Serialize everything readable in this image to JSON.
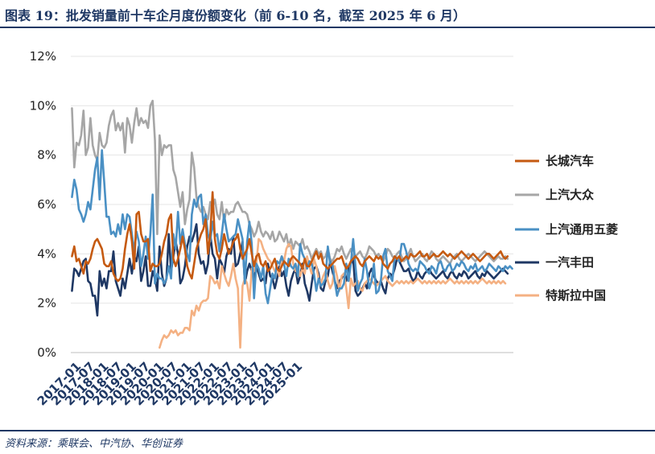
{
  "header": {
    "title": "图表 19：批发销量前十车企月度份额变化（前 6-10 名，截至 2025 年 6 月）"
  },
  "footer": {
    "source": "资料来源：乘联会、中汽协、华创证券"
  },
  "chart_data": {
    "type": "line",
    "title": "批发销量前十车企月度份额变化（前 6-10 名，截至 2025 年 6 月）",
    "xlabel": "",
    "ylabel": "",
    "ylim": [
      0,
      12
    ],
    "y_ticks": [
      "0%",
      "2%",
      "4%",
      "6%",
      "8%",
      "10%",
      "12%"
    ],
    "y_tick_values": [
      0,
      2,
      4,
      6,
      8,
      10,
      12
    ],
    "x_start": "2017-01",
    "x_end": "2025-06",
    "x_ticks": [
      "2017-01",
      "2017-07",
      "2018-01",
      "2018-07",
      "2019-01",
      "2019-07",
      "2020-01",
      "2020-07",
      "2021-01",
      "2021-07",
      "2022-01",
      "2022-07",
      "2023-01",
      "2023-07",
      "2024-01",
      "2024-07",
      "2025-01"
    ],
    "grid": "horizontal",
    "legend_position": "right",
    "series": [
      {
        "name": "长城汽车",
        "color": "#c55a11",
        "start_index": 0,
        "values": [
          3.9,
          4.3,
          3.7,
          3.8,
          3.5,
          3.2,
          3.7,
          3.6,
          3.8,
          4.2,
          4.5,
          4.6,
          4.4,
          4.2,
          3.6,
          3.5,
          3.5,
          3.7,
          3.2,
          3.0,
          2.9,
          3.0,
          3.4,
          4.2,
          4.8,
          5.2,
          4.5,
          3.4,
          5.6,
          5.7,
          4.8,
          4.5,
          4.5,
          4.6,
          3.3,
          3.6,
          3.5,
          3.5,
          3.6,
          4.0,
          4.5,
          4.8,
          5.4,
          5.6,
          3.8,
          3.5,
          3.8,
          4.2,
          4.7,
          4.2,
          3.5,
          3.2,
          3.0,
          3.6,
          4.2,
          4.5,
          4.8,
          5.0,
          5.4,
          4.0,
          4.8,
          6.5,
          4.6,
          4.0,
          3.8,
          4.2,
          4.8,
          4.4,
          4.0,
          4.2,
          4.5,
          4.6,
          4.8,
          4.2,
          3.8,
          4.0,
          4.2,
          4.6,
          4.0,
          3.5,
          3.9,
          4.0,
          3.6,
          3.5,
          3.7,
          3.3,
          3.4,
          3.6,
          3.8,
          3.4,
          3.3,
          3.5,
          3.7,
          3.6,
          3.5,
          3.8,
          3.9,
          3.8,
          3.7,
          3.6,
          3.4,
          3.8,
          3.5,
          3.5,
          3.7,
          3.9,
          4.1,
          3.8,
          4.0,
          3.6,
          3.5,
          3.4,
          3.5,
          3.6,
          3.7,
          3.8,
          3.8,
          3.9,
          3.6,
          3.4,
          3.5,
          3.7,
          3.8,
          3.9,
          3.8,
          3.6,
          3.5,
          3.7,
          3.8,
          3.9,
          3.8,
          3.7,
          3.9,
          3.8,
          3.9,
          3.6,
          3.5,
          3.4,
          3.6,
          3.7,
          3.9,
          3.8,
          3.9,
          3.7,
          3.8,
          3.9,
          3.8,
          4.0,
          3.9,
          3.9,
          4.0,
          4.1,
          3.9,
          3.9,
          4.0,
          3.8,
          3.9,
          4.0,
          3.9,
          3.9,
          4.0,
          4.1,
          4.0,
          3.9,
          4.0,
          3.9,
          3.8,
          3.9,
          4.0,
          4.1,
          4.0,
          3.9,
          3.8,
          3.9,
          4.0,
          3.9,
          3.8,
          3.7,
          3.8,
          3.9,
          4.0,
          4.0,
          3.9,
          3.8,
          3.9,
          4.0,
          4.1,
          3.9,
          3.8,
          3.9
        ]
      },
      {
        "name": "上汽大众",
        "color": "#a6a6a6",
        "start_index": 0,
        "values": [
          9.9,
          7.5,
          8.5,
          8.4,
          8.8,
          9.8,
          8.0,
          8.3,
          9.5,
          8.4,
          8.0,
          7.8,
          8.9,
          8.4,
          8.3,
          8.5,
          9.2,
          9.6,
          9.8,
          9.0,
          9.3,
          9.0,
          9.3,
          8.1,
          9.5,
          9.2,
          8.5,
          9.3,
          9.9,
          9.2,
          9.5,
          9.3,
          9.4,
          9.1,
          10.0,
          10.2,
          8.6,
          4.8,
          8.8,
          8.0,
          8.4,
          8.3,
          8.4,
          8.4,
          7.4,
          7.1,
          6.5,
          5.9,
          6.5,
          5.2,
          5.8,
          6.2,
          8.1,
          7.5,
          6.3,
          5.9,
          5.7,
          5.9,
          5.6,
          5.4,
          6.1,
          5.9,
          6.2,
          5.6,
          5.4,
          6.1,
          5.3,
          5.8,
          5.6,
          5.7,
          5.7,
          6.0,
          6.1,
          5.9,
          5.7,
          5.7,
          5.6,
          5.2,
          5.0,
          4.7,
          4.9,
          5.3,
          4.9,
          4.7,
          4.9,
          4.8,
          4.6,
          4.9,
          4.5,
          4.6,
          4.9,
          4.7,
          4.5,
          4.8,
          4.3,
          4.6,
          4.2,
          4.5,
          4.4,
          4.3,
          4.6,
          4.2,
          4.3,
          4.1,
          3.8,
          4.0,
          4.2,
          4.0,
          4.1,
          3.8,
          3.9,
          4.2,
          3.8,
          3.7,
          3.9,
          4.2,
          4.1,
          4.3,
          4.0,
          3.8,
          4.0,
          4.2,
          3.8,
          3.9,
          4.0,
          4.1,
          3.9,
          3.8,
          4.0,
          4.3,
          4.2,
          4.1,
          3.9,
          4.0,
          3.8,
          3.7,
          3.9,
          4.2,
          4.1,
          3.9,
          3.8,
          4.0,
          4.1,
          3.9,
          3.7,
          3.8,
          4.0,
          4.2,
          3.9,
          3.7,
          3.8,
          3.9,
          4.0,
          3.8,
          3.7,
          3.9,
          4.1,
          4.0,
          3.8,
          3.7,
          3.8,
          3.9,
          3.8,
          3.7,
          3.6,
          3.8,
          3.9,
          4.0,
          3.8,
          3.7,
          3.8,
          3.9,
          4.0,
          3.9,
          3.8,
          3.7,
          3.8,
          3.9,
          4.0,
          4.1,
          4.0,
          3.9,
          3.8,
          3.7,
          3.8,
          3.9,
          3.8,
          3.8,
          3.9,
          3.8
        ]
      },
      {
        "name": "上汽通用五菱",
        "color": "#4a90c4",
        "start_index": 0,
        "values": [
          6.3,
          7.0,
          6.6,
          5.8,
          5.6,
          5.3,
          5.6,
          6.1,
          5.8,
          6.6,
          7.4,
          7.9,
          6.2,
          8.2,
          6.9,
          5.5,
          5.5,
          4.8,
          4.9,
          4.7,
          5.2,
          4.8,
          5.6,
          5.0,
          5.6,
          5.5,
          4.8,
          4.1,
          4.9,
          4.5,
          3.5,
          4.0,
          4.7,
          3.8,
          4.8,
          6.4,
          2.8,
          3.2,
          3.0,
          3.0,
          2.8,
          3.0,
          3.5,
          3.0,
          4.8,
          4.2,
          5.7,
          4.4,
          5.0,
          4.4,
          4.0,
          3.7,
          5.6,
          6.2,
          5.9,
          6.3,
          6.4,
          5.2,
          5.6,
          4.8,
          4.5,
          5.3,
          4.7,
          4.8,
          4.1,
          4.8,
          5.6,
          5.0,
          4.5,
          4.6,
          4.7,
          4.8,
          5.4,
          5.0,
          4.6,
          2.8,
          4.5,
          5.3,
          4.4,
          2.2,
          3.6,
          3.4,
          3.0,
          3.5,
          2.4,
          2.0,
          2.6,
          3.2,
          3.0,
          3.7,
          3.6,
          3.9,
          3.6,
          3.1,
          3.8,
          3.5,
          3.4,
          3.6,
          3.1,
          4.4,
          4.0,
          3.8,
          3.4,
          3.7,
          3.6,
          3.2,
          2.5,
          3.0,
          2.7,
          2.8,
          3.0,
          4.3,
          3.6,
          3.6,
          2.9,
          2.3,
          2.6,
          2.6,
          2.8,
          3.6,
          2.9,
          3.6,
          4.6,
          3.5,
          2.5,
          2.8,
          3.0,
          3.8,
          3.3,
          2.6,
          2.9,
          3.6,
          2.4,
          2.5,
          2.9,
          3.9,
          4.2,
          3.3,
          3.1,
          2.9,
          3.9,
          3.8,
          3.7,
          4.4,
          4.4,
          4.1,
          3.6,
          3.4,
          3.3,
          3.4,
          3.3,
          3.7,
          3.6,
          3.5,
          3.3,
          3.2,
          3.5,
          3.4,
          3.2,
          3.6,
          3.7,
          3.4,
          3.3,
          3.5,
          3.6,
          3.3,
          3.4,
          3.6,
          3.5,
          3.7,
          3.6,
          3.4,
          3.3,
          3.5,
          3.4,
          3.6,
          3.3,
          3.4,
          3.5,
          3.3,
          3.4,
          3.6,
          3.5,
          3.4,
          3.3,
          3.5,
          3.4,
          3.3,
          3.5,
          3.4,
          3.5,
          3.4
        ]
      },
      {
        "name": "一汽丰田",
        "color": "#1f3864",
        "start_index": 0,
        "values": [
          2.5,
          3.4,
          3.3,
          3.1,
          3.4,
          3.7,
          3.8,
          2.9,
          2.8,
          2.3,
          2.3,
          1.5,
          3.3,
          2.7,
          3.0,
          2.6,
          3.3,
          3.3,
          4.1,
          2.9,
          2.6,
          2.3,
          3.0,
          2.6,
          3.2,
          3.8,
          3.2,
          3.9,
          3.7,
          4.3,
          2.9,
          3.3,
          3.9,
          2.7,
          2.7,
          3.3,
          3.0,
          2.5,
          4.3,
          3.2,
          2.7,
          3.0,
          4.8,
          3.3,
          3.9,
          4.5,
          4.0,
          2.8,
          3.0,
          3.5,
          4.3,
          4.7,
          4.5,
          4.8,
          5.2,
          4.0,
          3.6,
          3.7,
          3.2,
          3.6,
          4.8,
          4.0,
          3.8,
          3.0,
          3.8,
          3.6,
          3.2,
          3.9,
          4.2,
          4.0,
          4.7,
          3.5,
          3.6,
          4.0,
          4.5,
          2.8,
          3.3,
          3.6,
          3.3,
          3.0,
          3.5,
          3.2,
          2.9,
          3.0,
          2.8,
          3.6,
          3.1,
          3.0,
          2.6,
          3.0,
          3.5,
          3.1,
          3.3,
          2.7,
          2.3,
          2.9,
          3.2,
          3.4,
          2.8,
          3.1,
          3.6,
          2.8,
          2.5,
          2.1,
          2.8,
          3.4,
          3.5,
          3.2,
          2.6,
          2.5,
          2.9,
          3.1,
          3.7,
          3.3,
          2.9,
          2.6,
          2.9,
          3.0,
          3.2,
          2.9,
          3.4,
          3.6,
          3.8,
          2.5,
          2.3,
          2.4,
          2.6,
          2.8,
          2.6,
          3.2,
          3.4,
          3.1,
          2.9,
          2.8,
          2.9,
          2.6,
          2.4,
          3.0,
          3.2,
          3.1,
          3.4,
          3.8,
          3.7,
          3.5,
          3.3,
          3.3,
          3.4,
          3.1,
          2.9,
          3.0,
          3.3,
          3.1,
          3.0,
          3.2,
          3.3,
          3.4,
          3.2,
          3.1,
          3.0,
          3.1,
          3.2,
          3.3,
          3.1,
          3.0,
          3.2,
          3.3,
          3.1,
          3.0,
          3.2,
          3.1,
          3.3,
          3.2,
          3.0,
          3.1,
          3.2,
          3.3,
          3.1,
          3.0,
          3.2,
          3.1,
          3.3,
          3.2,
          3.1,
          3.0,
          3.1,
          3.2,
          3.3,
          3.4,
          3.3,
          3.2
        ]
      },
      {
        "name": "特斯拉中国",
        "color": "#f4b183",
        "start_index": 38,
        "values": [
          0.2,
          0.5,
          0.7,
          0.6,
          0.7,
          0.9,
          0.8,
          0.9,
          0.7,
          0.8,
          0.8,
          1.0,
          1.0,
          0.9,
          1.7,
          1.5,
          1.9,
          1.7,
          2.0,
          2.1,
          2.1,
          2.2,
          3.1,
          3.0,
          2.8,
          2.9,
          2.6,
          3.5,
          3.2,
          2.9,
          2.7,
          3.1,
          3.6,
          3.0,
          2.6,
          0.2,
          2.7,
          3.0,
          2.8,
          2.1,
          3.4,
          3.3,
          3.6,
          4.6,
          4.5,
          4.2,
          4.0,
          3.8,
          3.7,
          3.5,
          3.3,
          3.4,
          3.1,
          3.9,
          3.7,
          4.2,
          4.4,
          4.3,
          3.6,
          3.3,
          3.5,
          3.1,
          3.4,
          3.2,
          3.9,
          3.5,
          3.2,
          3.8,
          3.5,
          3.0,
          2.8,
          3.1,
          3.3,
          2.9,
          2.6,
          2.8,
          3.5,
          3.1,
          2.5,
          3.1,
          3.2,
          2.6,
          1.8,
          3.0,
          2.7,
          2.8,
          2.9,
          2.6,
          2.5,
          2.8,
          2.9,
          3.0,
          2.9,
          2.8,
          2.7,
          2.8,
          2.9,
          3.0,
          3.1,
          2.9,
          2.8,
          2.7,
          2.8,
          2.9,
          2.8,
          2.9,
          2.8,
          2.9,
          2.8,
          2.9,
          2.8,
          2.9,
          3.0,
          2.9,
          2.8,
          2.9,
          2.8,
          2.9,
          2.8,
          2.9,
          2.8,
          2.9,
          2.8,
          2.9,
          2.8,
          2.9,
          3.0,
          2.9,
          2.8,
          2.9,
          2.8,
          2.9,
          2.8,
          2.9,
          2.8,
          2.9,
          2.8,
          2.9,
          2.8,
          2.9,
          3.0,
          2.9,
          2.8,
          2.9,
          2.8,
          2.9,
          2.8,
          2.9,
          2.8,
          2.9,
          2.8
        ]
      }
    ]
  }
}
